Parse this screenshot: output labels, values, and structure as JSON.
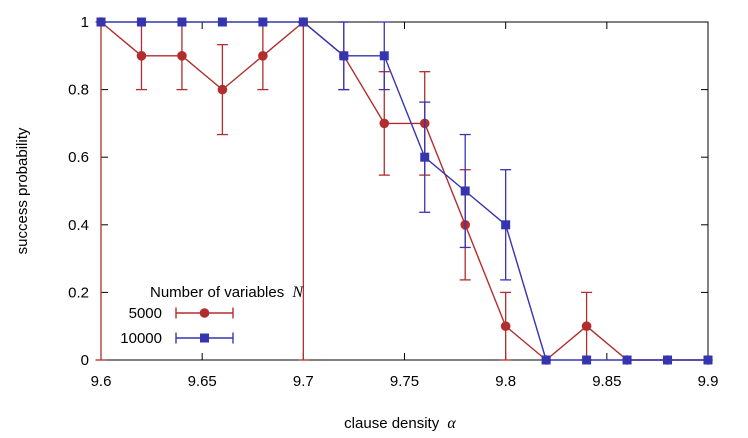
{
  "chart_data": {
    "type": "line",
    "title": "",
    "xlabel": "clause density",
    "xlabel_symbol": "α",
    "ylabel": "success probability",
    "xlim": [
      9.6,
      9.9
    ],
    "ylim": [
      0,
      1
    ],
    "xticks": [
      "9.6",
      "9.65",
      "9.7",
      "9.75",
      "9.8",
      "9.85",
      "9.9"
    ],
    "yticks": [
      "0",
      "0.2",
      "0.4",
      "0.6",
      "0.8",
      "1"
    ],
    "grid": false,
    "legend": {
      "title": "Number of variables",
      "title_symbol": "N",
      "placement": "bottom-left"
    },
    "series": [
      {
        "name": "5000",
        "color": "#b22d2d",
        "marker": "circle",
        "x": [
          9.6,
          9.62,
          9.64,
          9.66,
          9.68,
          9.7,
          9.72,
          9.74,
          9.76,
          9.78,
          9.8,
          9.82,
          9.84,
          9.86,
          9.88,
          9.9
        ],
        "y": [
          1.0,
          0.9,
          0.9,
          0.8,
          0.9,
          1.0,
          0.9,
          0.7,
          0.7,
          0.4,
          0.1,
          0.0,
          0.1,
          0.0,
          0.0,
          0.0
        ],
        "err_low": [
          0,
          0.8,
          0.8,
          0.667,
          0.8,
          0,
          0.8,
          0.547,
          0.547,
          0.237,
          0,
          0,
          0,
          0,
          0,
          0
        ],
        "err_high": [
          1.0,
          1.0,
          1.0,
          0.933,
          1.0,
          1.0,
          1.0,
          0.853,
          0.853,
          0.563,
          0.2,
          0,
          0.2,
          0,
          0,
          0
        ]
      },
      {
        "name": "10000",
        "color": "#3535b0",
        "marker": "square",
        "x": [
          9.6,
          9.62,
          9.64,
          9.66,
          9.68,
          9.7,
          9.72,
          9.74,
          9.76,
          9.78,
          9.8,
          9.82,
          9.84,
          9.86,
          9.88,
          9.9
        ],
        "y": [
          1.0,
          1.0,
          1.0,
          1.0,
          1.0,
          1.0,
          0.9,
          0.9,
          0.6,
          0.5,
          0.4,
          0.0,
          0.0,
          0.0,
          0.0,
          0.0
        ],
        "err_low": [
          0,
          0,
          0,
          0,
          0,
          0,
          0.8,
          0.8,
          0.437,
          0.333,
          0.237,
          0,
          0,
          0,
          0,
          0
        ],
        "err_high": [
          0,
          0,
          0,
          0,
          0,
          0,
          1.0,
          1.0,
          0.763,
          0.667,
          0.563,
          0,
          0,
          0,
          0,
          0
        ]
      }
    ]
  }
}
